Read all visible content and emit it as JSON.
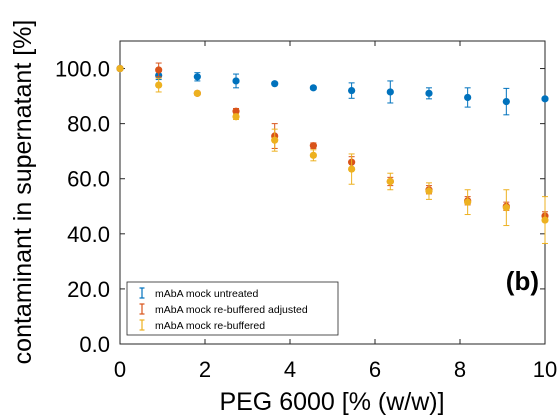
{
  "chart_data": {
    "type": "scatter",
    "xlabel": "PEG 6000 [% (w/w)]",
    "ylabel": "contaminant in supernatant [%]",
    "panel_label": "(b)",
    "xlim": [
      0,
      10
    ],
    "ylim": [
      0,
      110
    ],
    "x_ticks": [
      "0",
      "2",
      "4",
      "6",
      "8",
      "10"
    ],
    "y_ticks": [
      "0.0",
      "20.0",
      "40.0",
      "60.0",
      "80.0",
      "100.0"
    ],
    "grid": false,
    "legend_position": "bottom-left",
    "series": [
      {
        "name": "mAbA mock untreated",
        "color": "#0072BD",
        "x": [
          0,
          0.91,
          1.82,
          2.73,
          3.64,
          4.55,
          5.45,
          6.36,
          7.27,
          8.18,
          9.09,
          10.0
        ],
        "y": [
          100.0,
          97.5,
          97.0,
          95.5,
          94.5,
          93.0,
          92.0,
          91.5,
          91.0,
          89.5,
          88.0,
          89.0
        ],
        "err": [
          0.0,
          1.5,
          1.5,
          2.5,
          0.5,
          0.5,
          2.8,
          4.0,
          2.0,
          3.5,
          4.8,
          0.5
        ]
      },
      {
        "name": "mAbA mock re-buffered adjusted",
        "color": "#D95319",
        "x": [
          0,
          0.91,
          1.82,
          2.73,
          3.64,
          4.55,
          5.45,
          6.36,
          7.27,
          8.18,
          9.09,
          10.0
        ],
        "y": [
          100.0,
          99.5,
          91.0,
          84.5,
          75.5,
          72.0,
          66.0,
          59.0,
          56.0,
          52.0,
          50.0,
          46.5
        ],
        "err": [
          0.0,
          2.5,
          0.5,
          1.0,
          4.5,
          1.0,
          2.0,
          1.5,
          1.5,
          1.5,
          1.5,
          1.5
        ]
      },
      {
        "name": "mAbA mock re-buffered",
        "color": "#EDB120",
        "x": [
          0,
          0.91,
          1.82,
          2.73,
          3.64,
          4.55,
          5.45,
          6.36,
          7.27,
          8.18,
          9.09,
          10.0
        ],
        "y": [
          100.0,
          94.0,
          91.0,
          82.5,
          74.0,
          68.5,
          63.5,
          59.0,
          55.5,
          51.5,
          49.5,
          45.0
        ],
        "err": [
          0.0,
          2.5,
          0.5,
          1.0,
          4.0,
          2.0,
          5.5,
          3.0,
          3.0,
          4.5,
          6.5,
          8.5
        ]
      }
    ]
  }
}
